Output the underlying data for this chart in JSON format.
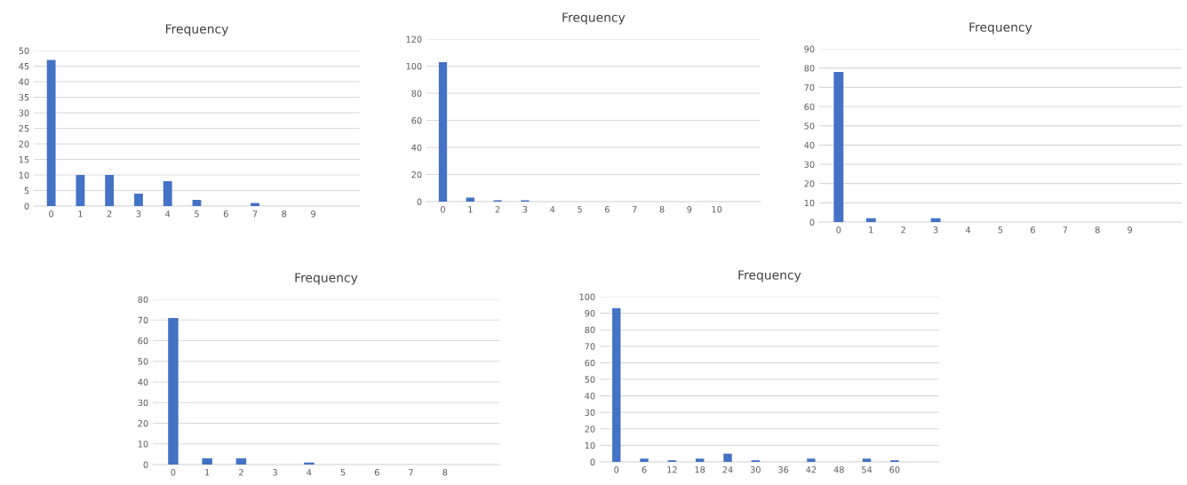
{
  "chart_data": [
    {
      "type": "bar",
      "title": "Frequency",
      "categories": [
        "0",
        "1",
        "2",
        "3",
        "4",
        "5",
        "6",
        "7",
        "8",
        "9",
        null
      ],
      "values": [
        47,
        10,
        10,
        4,
        8,
        2,
        0,
        1,
        0,
        0,
        0
      ],
      "color": "#4472c4",
      "ylim": [
        0,
        50
      ],
      "yticks": [
        0,
        5,
        10,
        15,
        20,
        25,
        30,
        35,
        40,
        45,
        50
      ],
      "grid": "y"
    },
    {
      "type": "bar",
      "title": "Frequency",
      "categories": [
        "0",
        "1",
        "2",
        "3",
        "4",
        "5",
        "6",
        "7",
        "8",
        "9",
        "10",
        null
      ],
      "values": [
        103,
        3,
        1,
        1,
        0,
        0,
        0,
        0,
        0,
        0,
        0,
        0
      ],
      "color": "#4472c4",
      "ylim": [
        0,
        120
      ],
      "yticks": [
        0,
        20,
        40,
        60,
        80,
        100,
        120
      ],
      "grid": "y"
    },
    {
      "type": "bar",
      "title": "Frequency",
      "categories": [
        "0",
        "1",
        "2",
        "3",
        "4",
        "5",
        "6",
        "7",
        "8",
        "9",
        null
      ],
      "values": [
        78,
        2,
        0,
        2,
        0,
        0,
        0,
        0,
        0,
        0,
        0
      ],
      "color": "#4472c4",
      "ylim": [
        0,
        90
      ],
      "yticks": [
        0,
        10,
        20,
        30,
        40,
        50,
        60,
        70,
        80,
        90
      ],
      "grid": "y"
    },
    {
      "type": "bar",
      "title": "Frequency",
      "categories": [
        "0",
        "1",
        "2",
        "3",
        "4",
        "5",
        "6",
        "7",
        "8",
        null
      ],
      "values": [
        71,
        3,
        3,
        0,
        1,
        0,
        0,
        0,
        0,
        0
      ],
      "color": "#4472c4",
      "ylim": [
        0,
        80
      ],
      "yticks": [
        0,
        10,
        20,
        30,
        40,
        50,
        60,
        70,
        80
      ],
      "grid": "y"
    },
    {
      "type": "bar",
      "title": "Frequency",
      "categories": [
        "0",
        "6",
        "12",
        "18",
        "24",
        "30",
        "36",
        "42",
        "48",
        "54",
        "60",
        null
      ],
      "values": [
        93,
        2,
        1,
        2,
        5,
        1,
        0,
        2,
        0,
        2,
        1,
        0
      ],
      "color": "#4472c4",
      "ylim": [
        0,
        100
      ],
      "yticks": [
        0,
        10,
        20,
        30,
        40,
        50,
        60,
        70,
        80,
        90,
        100
      ],
      "grid": "y"
    }
  ]
}
